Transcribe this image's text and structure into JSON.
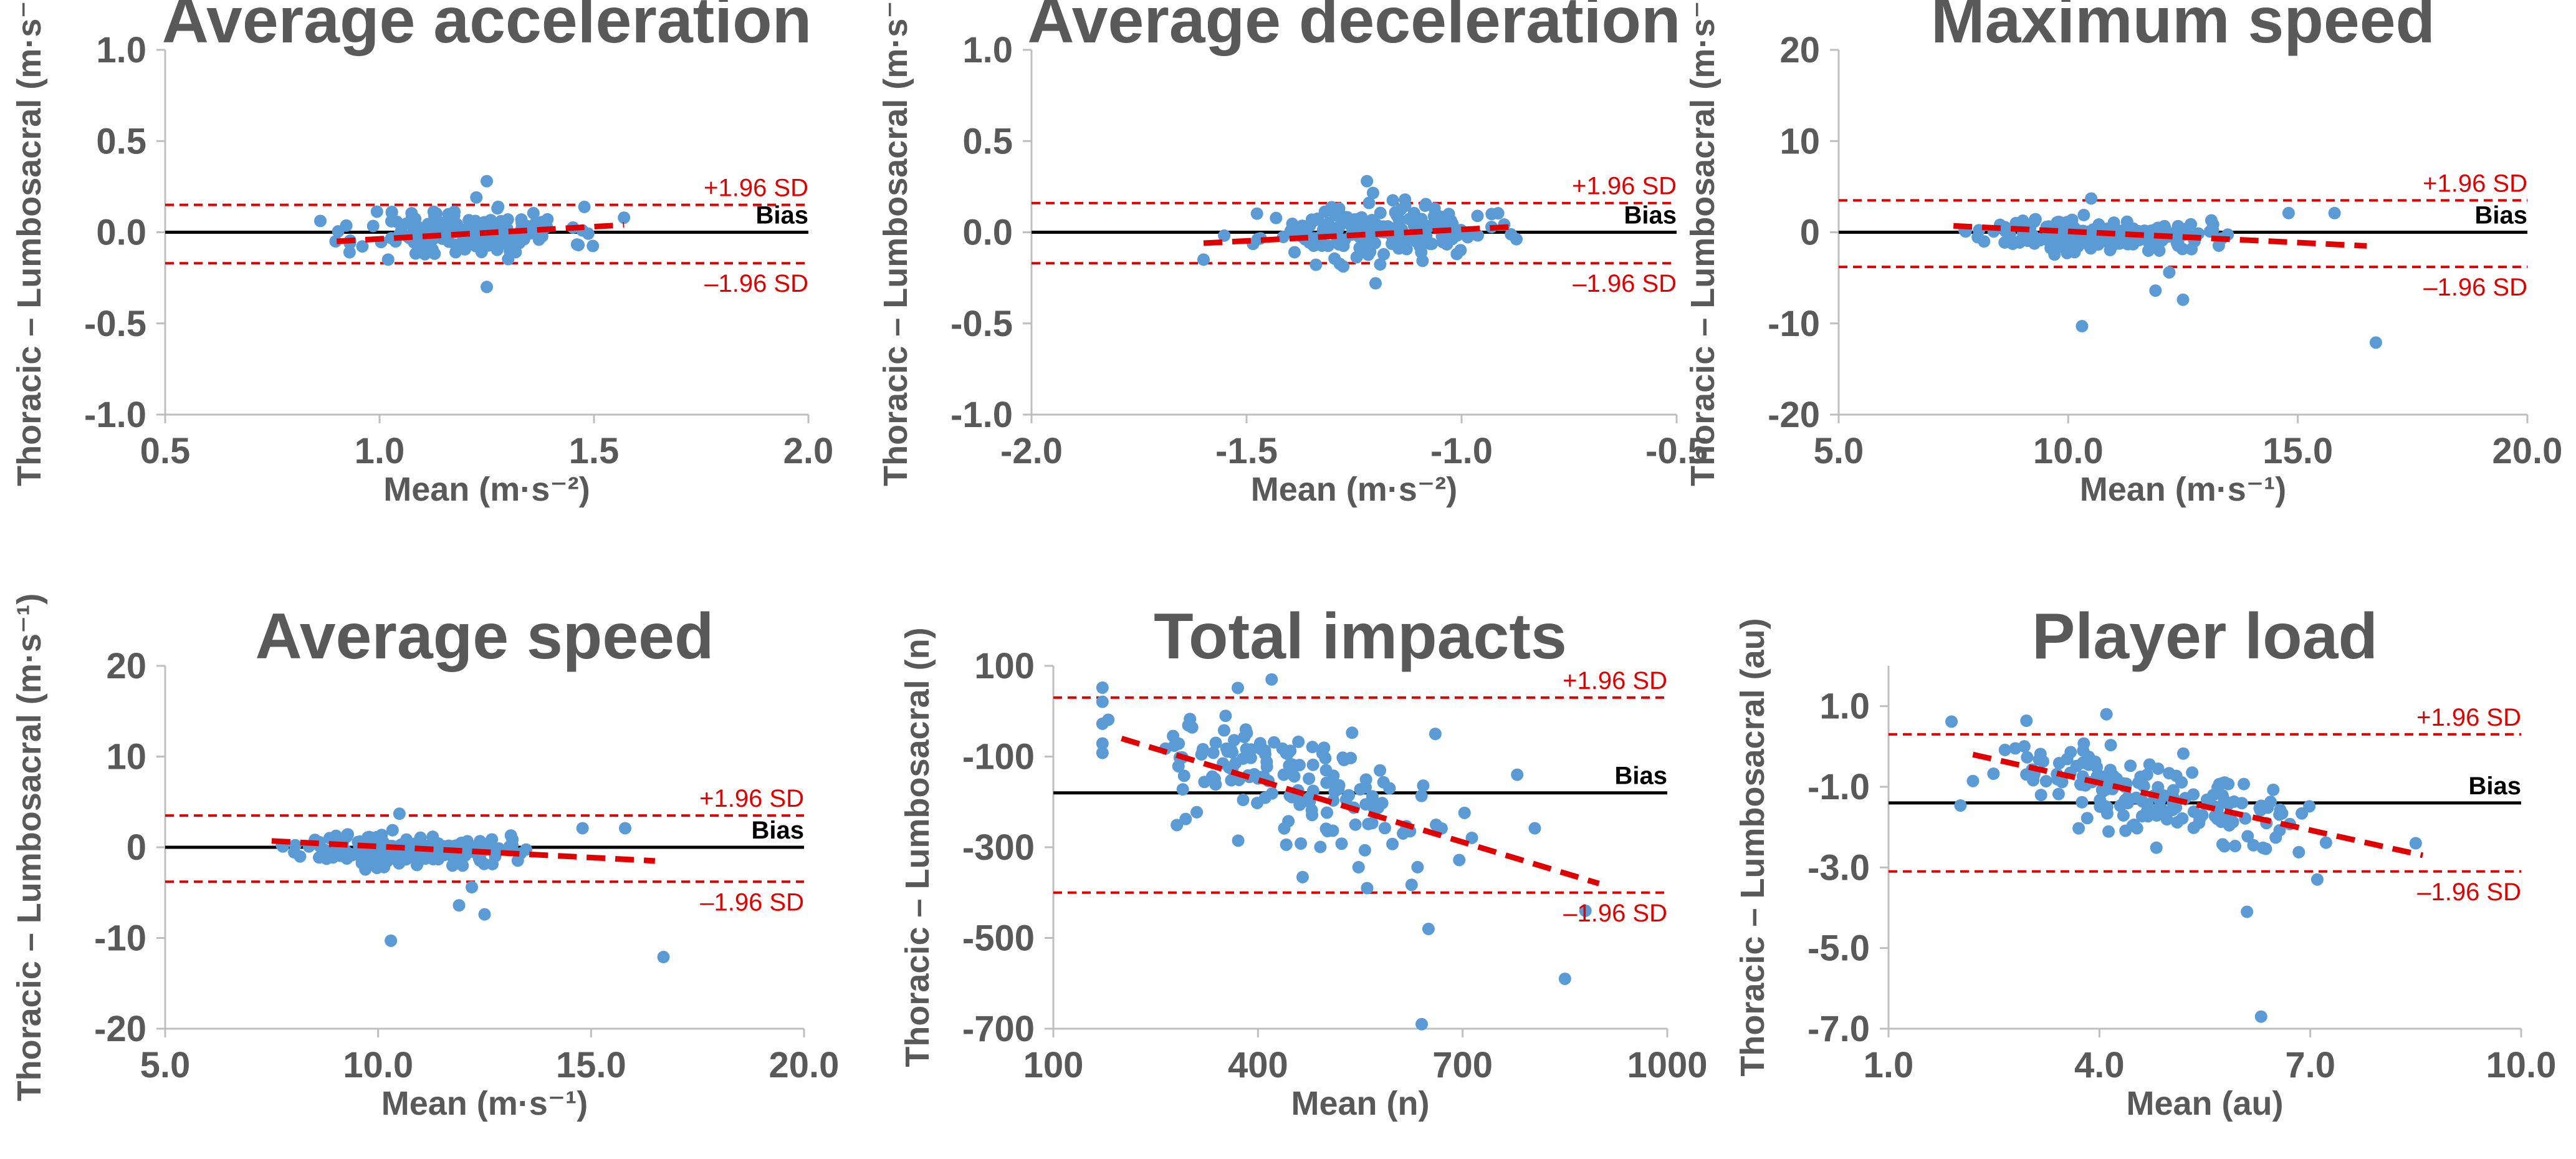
{
  "chart_data": [
    {
      "type": "scatter",
      "title": "Average acceleration",
      "xlabel": "Mean (m·s⁻²)",
      "ylabel": "Thoracic – Lumbosacral (m·s⁻²)",
      "xlim": [
        0.5,
        2.0
      ],
      "ylim": [
        -1.0,
        1.0
      ],
      "xticks": [
        "0.5",
        "1.0",
        "1.5",
        "2.0"
      ],
      "yticks": [
        "1.0",
        "0.5",
        "0.0",
        "-0.5",
        "-1.0"
      ],
      "bias": 0.0,
      "upper_loa": 0.15,
      "lower_loa": -0.17,
      "trend": [
        [
          0.9,
          -0.05
        ],
        [
          1.57,
          0.04
        ]
      ],
      "upper_label": "+1.96 SD",
      "lower_label": "–1.96 SD",
      "bias_label": "Bias",
      "center": [
        1.2,
        0.0
      ],
      "spread": [
        0.12,
        0.07
      ],
      "n": 170,
      "seed": 11,
      "outliers": [
        [
          1.25,
          0.28
        ],
        [
          1.25,
          -0.3
        ],
        [
          1.57,
          0.08
        ],
        [
          0.93,
          -0.11
        ],
        [
          1.02,
          -0.15
        ]
      ]
    },
    {
      "type": "scatter",
      "title": "Average deceleration",
      "xlabel": "Mean (m·s⁻²)",
      "ylabel": "Thoracic – Lumbosacral (m·s⁻²)",
      "xlim": [
        -2.0,
        -0.5
      ],
      "ylim": [
        -1.0,
        1.0
      ],
      "xticks": [
        "-2.0",
        "-1.5",
        "-1.0",
        "-0.5"
      ],
      "yticks": [
        "1.0",
        "0.5",
        "0.0",
        "-0.5",
        "-1.0"
      ],
      "bias": 0.0,
      "upper_loa": 0.16,
      "lower_loa": -0.17,
      "trend": [
        [
          -1.6,
          -0.06
        ],
        [
          -0.88,
          0.03
        ]
      ],
      "upper_label": "+1.96 SD",
      "lower_label": "–1.96 SD",
      "bias_label": "Bias",
      "center": [
        -1.2,
        0.0
      ],
      "spread": [
        0.13,
        0.07
      ],
      "n": 170,
      "seed": 23,
      "outliers": [
        [
          -1.22,
          0.28
        ],
        [
          -1.2,
          -0.28
        ],
        [
          -1.6,
          -0.15
        ],
        [
          -0.93,
          0.1
        ]
      ]
    },
    {
      "type": "scatter",
      "title": "Maximum speed",
      "xlabel": "Mean (m·s⁻¹)",
      "ylabel": "Thoracic – Lumbosacral (m·s⁻¹)",
      "xlim": [
        5.0,
        20.0
      ],
      "ylim": [
        -20,
        20
      ],
      "xticks": [
        "5.0",
        "10.0",
        "15.0",
        "20.0"
      ],
      "yticks": [
        "20",
        "10",
        "0",
        "-10",
        "-20"
      ],
      "bias": 0.0,
      "upper_loa": 3.5,
      "lower_loa": -3.8,
      "trend": [
        [
          7.5,
          0.7
        ],
        [
          16.5,
          -1.5
        ]
      ],
      "upper_label": "+1.96 SD",
      "lower_label": "–1.96 SD",
      "bias_label": "Bias",
      "center": [
        10.6,
        -0.3
      ],
      "spread": [
        1.2,
        0.9
      ],
      "n": 170,
      "seed": 37,
      "outliers": [
        [
          10.3,
          -10.3
        ],
        [
          16.7,
          -12.1
        ],
        [
          12.5,
          -7.4
        ],
        [
          11.9,
          -6.4
        ],
        [
          14.8,
          2.1
        ],
        [
          15.8,
          2.1
        ],
        [
          10.5,
          3.7
        ],
        [
          12.2,
          -4.4
        ]
      ]
    },
    {
      "type": "scatter",
      "title": "Average speed",
      "xlabel": "Mean (m·s⁻¹)",
      "ylabel": "Thoracic – Lumbosacral (m·s⁻¹)",
      "xlim": [
        5.0,
        20.0
      ],
      "ylim": [
        -20,
        20
      ],
      "xticks": [
        "5.0",
        "10.0",
        "15.0",
        "20.0"
      ],
      "yticks": [
        "20",
        "10",
        "0",
        "-10",
        "-20"
      ],
      "bias": 0.0,
      "upper_loa": 3.5,
      "lower_loa": -3.8,
      "trend": [
        [
          7.5,
          0.7
        ],
        [
          16.5,
          -1.5
        ]
      ],
      "upper_label": "+1.96 SD",
      "lower_label": "–1.96 SD",
      "bias_label": "Bias",
      "center": [
        10.6,
        -0.3
      ],
      "spread": [
        1.2,
        0.9
      ],
      "n": 170,
      "seed": 37,
      "outliers": [
        [
          10.3,
          -10.3
        ],
        [
          16.7,
          -12.1
        ],
        [
          12.5,
          -7.4
        ],
        [
          11.9,
          -6.4
        ],
        [
          14.8,
          2.1
        ],
        [
          15.8,
          2.1
        ],
        [
          10.5,
          3.7
        ],
        [
          12.2,
          -4.4
        ]
      ]
    },
    {
      "type": "scatter",
      "title": "Total impacts",
      "xlabel": "Mean (n)",
      "ylabel": "Thoracic – Lumbosacral (n)",
      "xlim": [
        100,
        1000
      ],
      "ylim": [
        -700,
        100
      ],
      "xticks": [
        "100",
        "400",
        "700",
        "1000"
      ],
      "yticks": [
        "100",
        "-100",
        "-300",
        "-500",
        "-700"
      ],
      "bias": -180,
      "upper_loa": 30,
      "lower_loa": -400,
      "trend": [
        [
          200,
          -60
        ],
        [
          900,
          -380
        ]
      ],
      "upper_label": "+1.96 SD",
      "lower_label": "–1.96 SD",
      "bias_label": "Bias",
      "center": [
        450,
        -160
      ],
      "spread": [
        130,
        70
      ],
      "n": 160,
      "seed": 53,
      "slope": -0.45,
      "outliers": [
        [
          420,
          70
        ],
        [
          640,
          -690
        ],
        [
          850,
          -590
        ],
        [
          650,
          -480
        ],
        [
          880,
          -440
        ],
        [
          560,
          -390
        ],
        [
          780,
          -140
        ],
        [
          660,
          -50
        ]
      ]
    },
    {
      "type": "scatter",
      "title": "Player load",
      "xlabel": "Mean (au)",
      "ylabel": "Thoracic – Lumbosacral (au)",
      "xlim": [
        1.0,
        10.0
      ],
      "ylim": [
        -7.0,
        2.0
      ],
      "xticks": [
        "1.0",
        "4.0",
        "7.0",
        "10.0"
      ],
      "yticks": [
        "1.0",
        "-1.0",
        "-3.0",
        "-5.0",
        "-7.0"
      ],
      "bias": -1.4,
      "upper_loa": 0.3,
      "lower_loa": -3.1,
      "trend": [
        [
          2.2,
          -0.2
        ],
        [
          8.6,
          -2.7
        ]
      ],
      "upper_label": "+1.96 SD",
      "lower_label": "–1.96 SD",
      "bias_label": "Bias",
      "center": [
        4.8,
        -1.3
      ],
      "spread": [
        1.3,
        0.55
      ],
      "n": 170,
      "seed": 71,
      "slope": -0.35,
      "outliers": [
        [
          6.3,
          -6.7
        ],
        [
          6.1,
          -4.1
        ],
        [
          4.1,
          0.8
        ],
        [
          7.1,
          -3.3
        ],
        [
          8.5,
          -2.4
        ]
      ]
    }
  ]
}
